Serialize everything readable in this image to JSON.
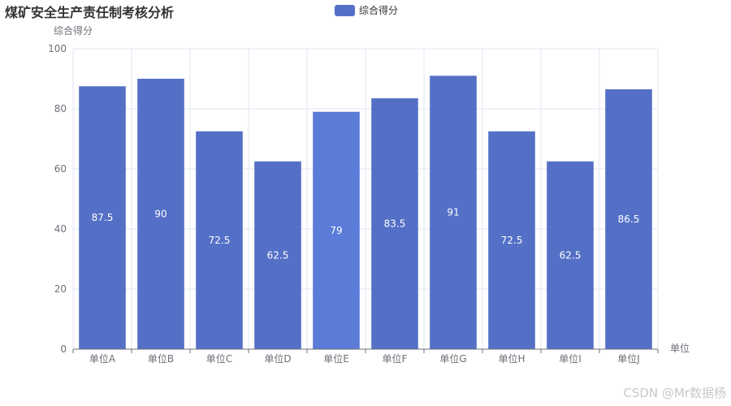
{
  "title": "煤矿安全生产责任制考核分析",
  "legend": {
    "label": "综合得分"
  },
  "watermark": "CSDN @Mr数据杨",
  "colors": {
    "bar": "#5470c6",
    "bar_highlight": "#5b7bd8"
  },
  "chart_data": {
    "type": "bar",
    "title": "煤矿安全生产责任制考核分析",
    "xlabel": "单位",
    "ylabel": "综合得分",
    "categories": [
      "单位A",
      "单位B",
      "单位C",
      "单位D",
      "单位E",
      "单位F",
      "单位G",
      "单位H",
      "单位I",
      "单位J"
    ],
    "series": [
      {
        "name": "综合得分",
        "values": [
          87.5,
          90,
          72.5,
          62.5,
          79,
          83.5,
          91,
          72.5,
          62.5,
          86.5
        ]
      }
    ],
    "ylim": [
      0,
      100
    ],
    "yticks": [
      0,
      20,
      40,
      60,
      80,
      100
    ],
    "grid": true,
    "legend_position": "top-center",
    "data_labels": true,
    "highlighted_category": "单位E"
  }
}
